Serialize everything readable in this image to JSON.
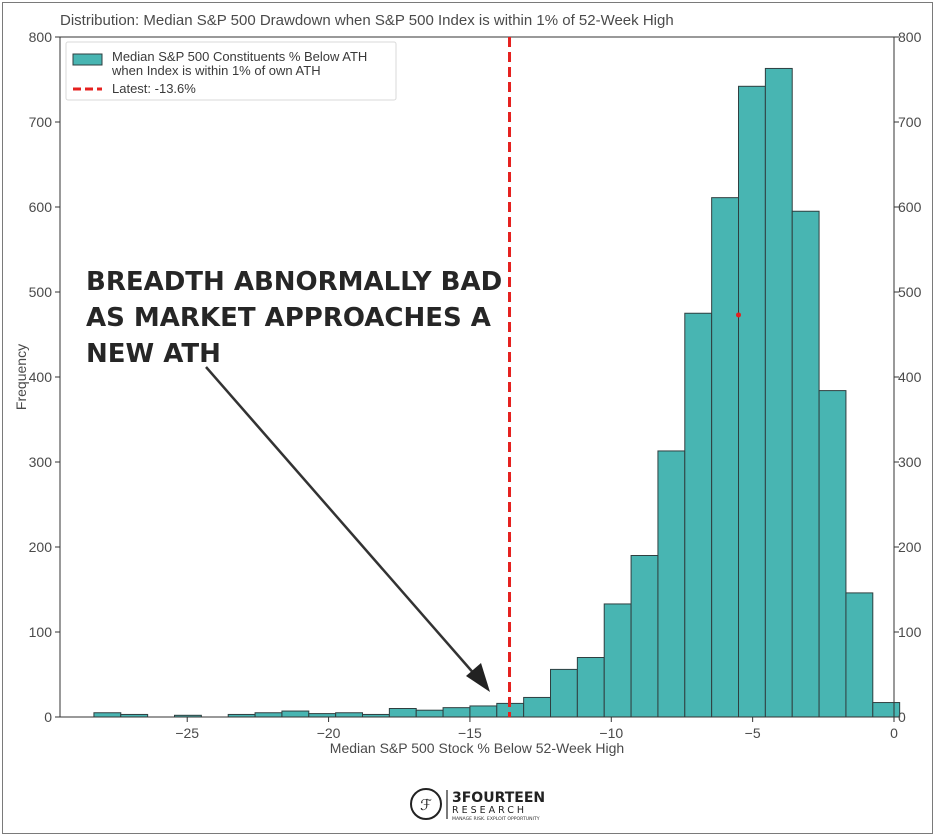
{
  "chart_data": {
    "type": "bar",
    "title": "Distribution: Median S&P 500 Drawdown when S&P 500 Index is within 1% of 52-Week High",
    "xlabel": "Median S&P 500 Stock % Below 52-Week High",
    "ylabel": "Frequency",
    "xlim": [
      -29.5,
      0
    ],
    "ylim": [
      0,
      800
    ],
    "x_ticks": [
      -25,
      -20,
      -15,
      -10,
      -5,
      0
    ],
    "x_tick_labels": [
      "−25",
      "−20",
      "−15",
      "−10",
      "−5",
      "0"
    ],
    "y_ticks": [
      0,
      100,
      200,
      300,
      400,
      500,
      600,
      700,
      800
    ],
    "y_tick_labels": [
      "0",
      "100",
      "200",
      "300",
      "400",
      "500",
      "600",
      "700",
      "800"
    ],
    "secondary_y_axis": true,
    "grid": false,
    "legend_position": "top-left",
    "bar_color": "#48b5b2",
    "bar_edge_color": "#2f3f40",
    "bin_edges": [
      -28.3,
      -27.35,
      -26.4,
      -25.45,
      -24.5,
      -23.55,
      -22.6,
      -21.65,
      -20.7,
      -19.75,
      -18.8,
      -17.85,
      -16.9,
      -15.95,
      -15.0,
      -14.05,
      -13.1,
      -12.15,
      -11.2,
      -10.25,
      -9.3,
      -8.35,
      -7.4,
      -6.45,
      -5.5,
      -4.55,
      -3.6,
      -2.65,
      -1.7,
      -0.75
    ],
    "values": [
      5,
      3,
      0,
      2,
      0,
      3,
      5,
      7,
      4,
      5,
      3,
      10,
      8,
      11,
      13,
      16,
      23,
      56,
      70,
      133,
      190,
      313,
      475,
      611,
      742,
      763,
      595,
      384,
      146,
      17
    ],
    "latest": {
      "x": -13.6,
      "label": "Latest: -13.6%",
      "color": "#e5211f"
    },
    "series": [
      {
        "name": "Median S&P 500 Constituents % Below ATH when Index is within 1% of own ATH",
        "color": "#48b5b2"
      }
    ],
    "legend": {
      "series_line1": "Median S&P 500 Constituents % Below ATH",
      "series_line2": "when Index is within 1% of own ATH",
      "latest_label": "Latest: -13.6%"
    },
    "annotation": {
      "lines": [
        "BREADTH ABNORMALLY BAD",
        "AS MARKET APPROACHES A",
        "NEW ATH"
      ]
    },
    "marker_point": {
      "x": -5.5,
      "y": 473,
      "color": "#e5211f"
    }
  },
  "branding": {
    "name": "3FOURTEEN",
    "subtitle": "RESEARCH",
    "tagline": "MANAGE RISK. EXPLOIT OPPORTUNITY"
  }
}
